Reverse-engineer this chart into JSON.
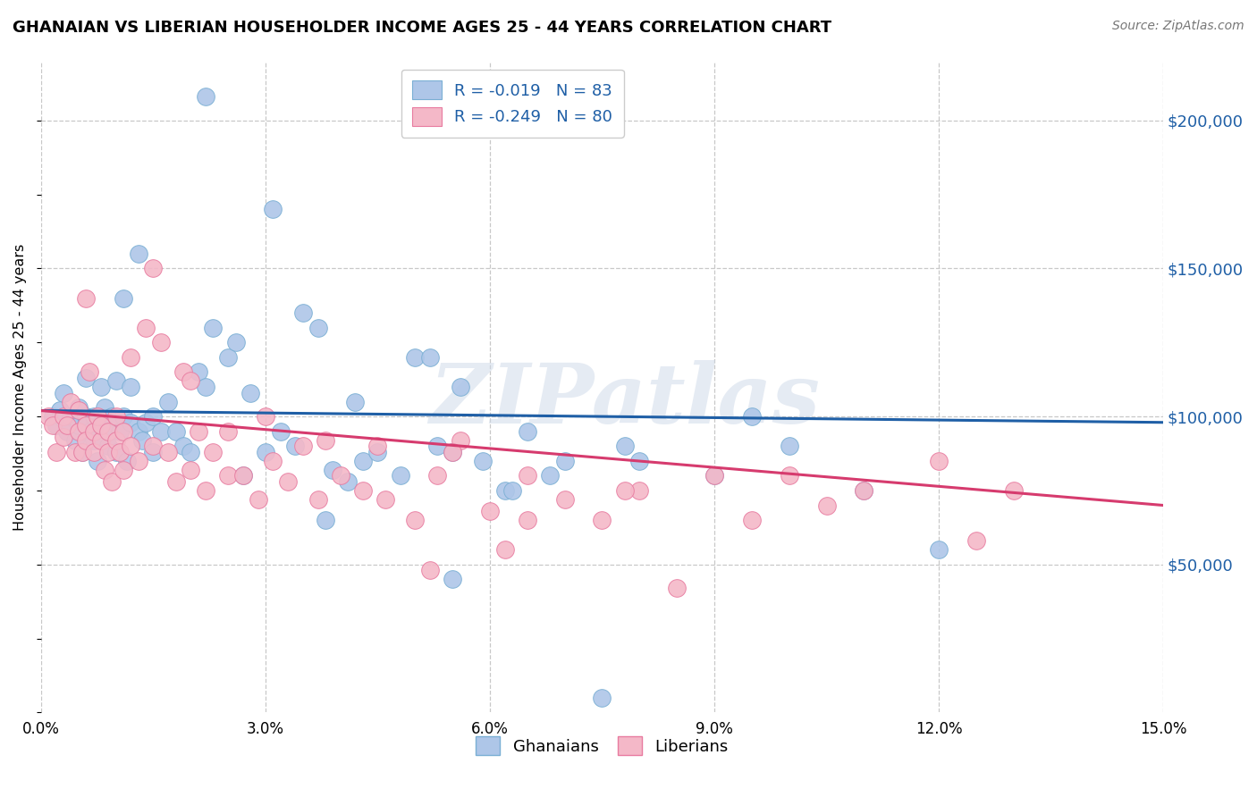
{
  "title": "GHANAIAN VS LIBERIAN HOUSEHOLDER INCOME AGES 25 - 44 YEARS CORRELATION CHART",
  "source": "Source: ZipAtlas.com",
  "ylabel": "Householder Income Ages 25 - 44 years",
  "xlabel_ticks": [
    "0.0%",
    "3.0%",
    "6.0%",
    "9.0%",
    "12.0%",
    "15.0%"
  ],
  "xlabel_vals": [
    0.0,
    3.0,
    6.0,
    9.0,
    12.0,
    15.0
  ],
  "ylim": [
    0,
    220000
  ],
  "xlim": [
    0.0,
    15.0
  ],
  "ghanaian_color": "#aec6e8",
  "liberian_color": "#f4b8c8",
  "ghanaian_edge": "#7aafd4",
  "liberian_edge": "#e87ba0",
  "trend_blue": "#1f5fa6",
  "trend_pink": "#d63b6e",
  "R_ghanaian": -0.019,
  "N_ghanaian": 83,
  "R_liberian": -0.249,
  "N_liberian": 80,
  "watermark": "ZIPatlas",
  "ghanaian_x": [
    0.15,
    0.2,
    0.25,
    0.3,
    0.3,
    0.35,
    0.4,
    0.45,
    0.5,
    0.5,
    0.55,
    0.6,
    0.6,
    0.65,
    0.7,
    0.7,
    0.75,
    0.8,
    0.8,
    0.85,
    0.9,
    0.9,
    0.95,
    1.0,
    1.0,
    1.05,
    1.1,
    1.1,
    1.15,
    1.2,
    1.2,
    1.3,
    1.35,
    1.4,
    1.5,
    1.5,
    1.6,
    1.7,
    1.8,
    1.9,
    2.0,
    2.1,
    2.2,
    2.3,
    2.5,
    2.6,
    2.8,
    3.0,
    3.2,
    3.4,
    3.5,
    3.7,
    3.9,
    4.1,
    4.3,
    4.5,
    4.8,
    5.0,
    5.3,
    5.6,
    5.9,
    6.2,
    6.5,
    6.8,
    7.0,
    7.5,
    8.0,
    9.0,
    10.0,
    11.0,
    1.3,
    2.2,
    3.1,
    4.2,
    5.5,
    6.3,
    7.8,
    9.5,
    12.0,
    2.7,
    3.8,
    5.2,
    5.5
  ],
  "ghanaian_y": [
    100000,
    97000,
    102000,
    99000,
    108000,
    95000,
    100000,
    92000,
    103000,
    97000,
    88000,
    100000,
    113000,
    95000,
    100000,
    92000,
    85000,
    110000,
    98000,
    103000,
    90000,
    95000,
    100000,
    88000,
    112000,
    95000,
    140000,
    100000,
    85000,
    110000,
    98000,
    95000,
    92000,
    98000,
    100000,
    88000,
    95000,
    105000,
    95000,
    90000,
    88000,
    115000,
    110000,
    130000,
    120000,
    125000,
    108000,
    88000,
    95000,
    90000,
    135000,
    130000,
    82000,
    78000,
    85000,
    88000,
    80000,
    120000,
    90000,
    110000,
    85000,
    75000,
    95000,
    80000,
    85000,
    5000,
    85000,
    80000,
    90000,
    75000,
    155000,
    208000,
    170000,
    105000,
    88000,
    75000,
    90000,
    100000,
    55000,
    80000,
    65000,
    120000,
    45000
  ],
  "liberian_x": [
    0.1,
    0.15,
    0.2,
    0.3,
    0.3,
    0.35,
    0.4,
    0.45,
    0.5,
    0.5,
    0.55,
    0.6,
    0.6,
    0.65,
    0.7,
    0.7,
    0.75,
    0.8,
    0.8,
    0.85,
    0.9,
    0.9,
    0.95,
    1.0,
    1.0,
    1.05,
    1.1,
    1.1,
    1.2,
    1.3,
    1.4,
    1.5,
    1.6,
    1.7,
    1.8,
    1.9,
    2.0,
    2.1,
    2.2,
    2.3,
    2.5,
    2.7,
    2.9,
    3.1,
    3.3,
    3.5,
    3.7,
    4.0,
    4.3,
    4.6,
    5.0,
    5.3,
    5.6,
    6.0,
    6.5,
    7.0,
    7.5,
    8.0,
    8.5,
    9.0,
    9.5,
    10.0,
    11.0,
    12.0,
    13.0,
    0.6,
    1.2,
    2.0,
    3.0,
    4.5,
    5.5,
    6.5,
    7.8,
    10.5,
    12.5,
    1.5,
    2.5,
    3.8,
    5.2,
    6.2
  ],
  "liberian_y": [
    100000,
    97000,
    88000,
    100000,
    93000,
    97000,
    105000,
    88000,
    95000,
    102000,
    88000,
    97000,
    92000,
    115000,
    95000,
    88000,
    100000,
    92000,
    97000,
    82000,
    88000,
    95000,
    78000,
    100000,
    92000,
    88000,
    95000,
    82000,
    90000,
    85000,
    130000,
    90000,
    125000,
    88000,
    78000,
    115000,
    82000,
    95000,
    75000,
    88000,
    80000,
    80000,
    72000,
    85000,
    78000,
    90000,
    72000,
    80000,
    75000,
    72000,
    65000,
    80000,
    92000,
    68000,
    65000,
    72000,
    65000,
    75000,
    42000,
    80000,
    65000,
    80000,
    75000,
    85000,
    75000,
    140000,
    120000,
    112000,
    100000,
    90000,
    88000,
    80000,
    75000,
    70000,
    58000,
    150000,
    95000,
    92000,
    48000,
    55000
  ]
}
